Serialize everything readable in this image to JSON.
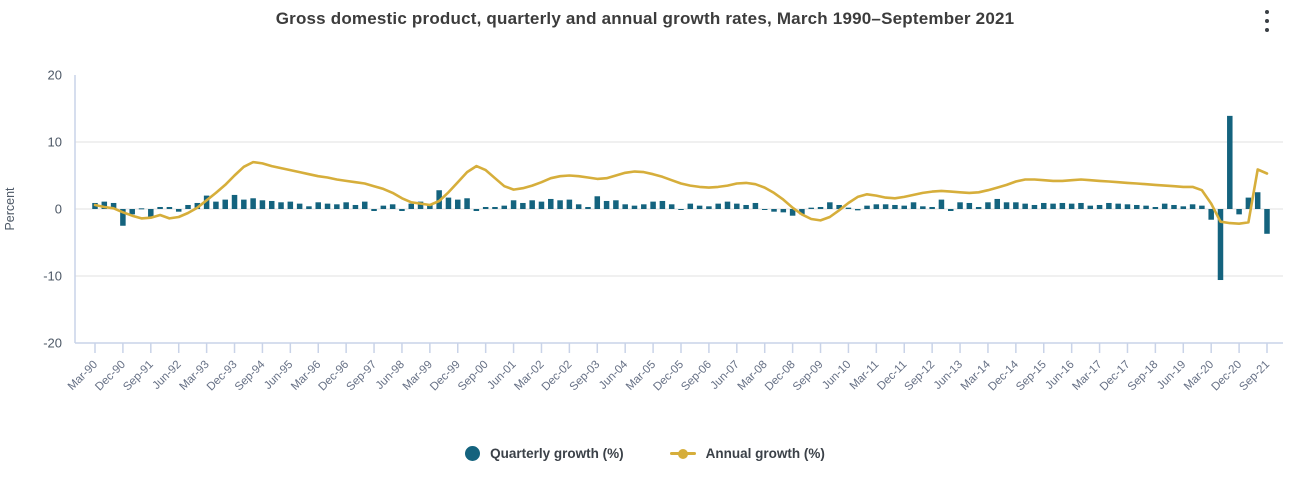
{
  "header": {
    "title": "Gross domestic product, quarterly and annual growth rates, March 1990–September 2021",
    "menu_icon": "kebab-menu-icon"
  },
  "colors": {
    "quarterly_bar": "#14637e",
    "annual_line": "#d6ae3b",
    "gridline": "#ececec",
    "axis_line": "#c9d3e8",
    "tick_label": "#667085",
    "y_label": "#4d5866",
    "title_text": "#3c3c3c",
    "legend_text": "#3b4148"
  },
  "chart_data": {
    "type": "bar",
    "title": "Gross domestic product, quarterly and annual growth rates, March 1990–September 2021",
    "xlabel": "",
    "ylabel": "Percent",
    "ylim": [
      -20,
      20
    ],
    "yticks": [
      20,
      10,
      0,
      -10,
      -20
    ],
    "grid": "horizontal",
    "legend_position": "bottom",
    "x_label_step": 3,
    "x_labels": [
      "Mar-90",
      "Dec-90",
      "Sep-91",
      "Jun-92",
      "Mar-93",
      "Dec-93",
      "Sep-94",
      "Jun-95",
      "Mar-96",
      "Dec-96",
      "Sep-97",
      "Jun-98",
      "Mar-99",
      "Dec-99",
      "Sep-00",
      "Jun-01",
      "Mar-02",
      "Dec-02",
      "Sep-03",
      "Jun-04",
      "Mar-05",
      "Dec-05",
      "Sep-06",
      "Jun-07",
      "Mar-08",
      "Dec-08",
      "Sep-09",
      "Jun-10",
      "Mar-11",
      "Dec-11",
      "Sep-12",
      "Jun-13",
      "Mar-14",
      "Dec-14",
      "Sep-15",
      "Jun-16",
      "Mar-17",
      "Dec-17",
      "Sep-18",
      "Jun-19",
      "Mar-20",
      "Dec-20",
      "Sep-21"
    ],
    "series": [
      {
        "name": "Quarterly growth (%)",
        "type": "bar",
        "color": "#14637e",
        "values": [
          0.9,
          1.1,
          0.9,
          -2.5,
          -0.8,
          0.1,
          -1.2,
          0.3,
          0.3,
          -0.4,
          0.6,
          0.9,
          2.0,
          1.1,
          1.4,
          2.1,
          1.4,
          1.6,
          1.3,
          1.2,
          1.0,
          1.1,
          0.8,
          0.4,
          1.0,
          0.8,
          0.7,
          1.0,
          0.6,
          1.1,
          -0.3,
          0.5,
          0.7,
          -0.3,
          0.8,
          1.1,
          0.7,
          2.8,
          1.7,
          1.4,
          1.6,
          -0.3,
          0.3,
          0.3,
          0.5,
          1.3,
          0.9,
          1.3,
          1.1,
          1.5,
          1.3,
          1.4,
          0.7,
          0.3,
          1.9,
          1.2,
          1.3,
          0.7,
          0.5,
          0.7,
          1.1,
          1.2,
          0.7,
          -0.1,
          0.8,
          0.5,
          0.4,
          0.8,
          1.1,
          0.8,
          0.6,
          0.9,
          -0.1,
          -0.4,
          -0.5,
          -1.0,
          -0.8,
          0.2,
          0.3,
          1.0,
          0.6,
          0.2,
          -0.2,
          0.5,
          0.7,
          0.7,
          0.6,
          0.5,
          1.0,
          0.4,
          0.3,
          1.4,
          -0.3,
          1.0,
          0.9,
          0.3,
          1.0,
          1.5,
          1.0,
          1.0,
          0.8,
          0.6,
          0.9,
          0.8,
          0.9,
          0.8,
          0.9,
          0.5,
          0.6,
          0.9,
          0.8,
          0.7,
          0.6,
          0.5,
          0.3,
          0.8,
          0.6,
          0.4,
          0.7,
          0.5,
          -1.6,
          -10.6,
          13.9,
          -0.8,
          1.7,
          2.5,
          -3.7
        ]
      },
      {
        "name": "Annual growth (%)",
        "type": "line",
        "color": "#d6ae3b",
        "values": [
          0.6,
          0.3,
          0.1,
          -0.5,
          -1.0,
          -1.4,
          -1.3,
          -0.9,
          -1.4,
          -1.2,
          -0.6,
          0.2,
          1.3,
          2.4,
          3.6,
          5.0,
          6.3,
          7.0,
          6.8,
          6.4,
          6.1,
          5.8,
          5.5,
          5.2,
          4.9,
          4.7,
          4.4,
          4.2,
          4.0,
          3.8,
          3.4,
          3.0,
          2.4,
          1.6,
          1.0,
          0.8,
          0.6,
          1.2,
          2.5,
          4.0,
          5.5,
          6.4,
          5.8,
          4.6,
          3.4,
          2.9,
          3.1,
          3.5,
          4.0,
          4.6,
          4.9,
          5.0,
          4.9,
          4.7,
          4.5,
          4.6,
          5.0,
          5.4,
          5.6,
          5.5,
          5.2,
          4.8,
          4.3,
          3.8,
          3.5,
          3.3,
          3.2,
          3.3,
          3.5,
          3.8,
          3.9,
          3.7,
          3.2,
          2.4,
          1.4,
          0.2,
          -0.8,
          -1.5,
          -1.7,
          -1.2,
          -0.2,
          0.9,
          1.8,
          2.2,
          2.0,
          1.7,
          1.6,
          1.8,
          2.1,
          2.4,
          2.6,
          2.7,
          2.6,
          2.5,
          2.4,
          2.5,
          2.8,
          3.2,
          3.6,
          4.1,
          4.4,
          4.4,
          4.3,
          4.2,
          4.2,
          4.3,
          4.4,
          4.3,
          4.2,
          4.1,
          4.0,
          3.9,
          3.8,
          3.7,
          3.6,
          3.5,
          3.4,
          3.3,
          3.3,
          2.8,
          0.8,
          -1.9,
          -2.1,
          -2.2,
          -2.0,
          5.9,
          5.3
        ]
      }
    ]
  }
}
